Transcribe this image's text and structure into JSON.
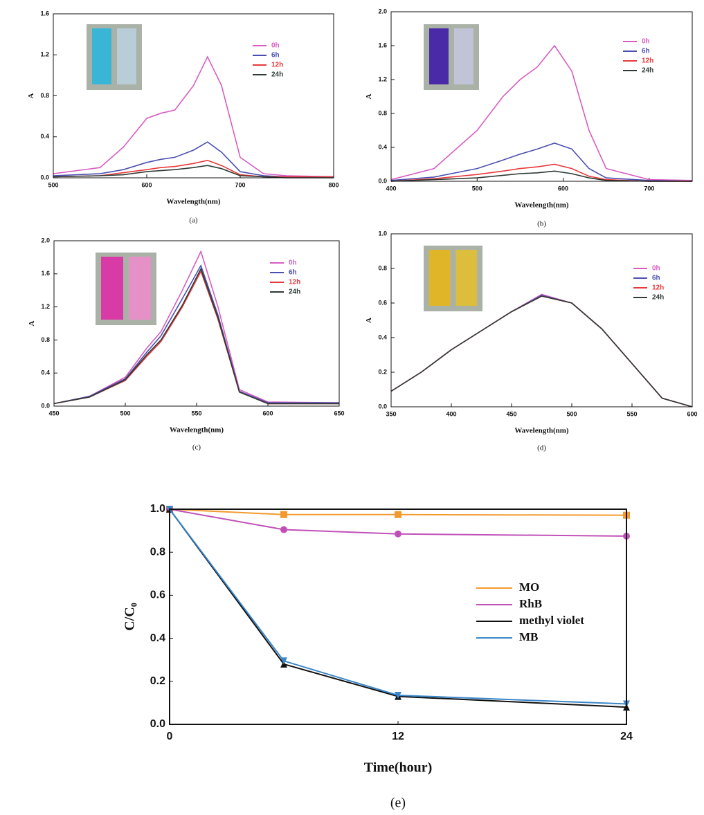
{
  "chart_data": [
    {
      "type": "line",
      "caption": "(a)",
      "xlabel": "Wavelength(nm)",
      "ylabel": "A",
      "xlim": [
        500,
        800
      ],
      "xticks": [
        500,
        600,
        700,
        800
      ],
      "ylim": [
        0,
        1.6
      ],
      "yticks": [
        {
          "value": 0,
          "label": "0.0"
        },
        0.4,
        0.8,
        1.2,
        1.6
      ],
      "x": [
        500,
        550,
        575,
        600,
        615,
        630,
        650,
        665,
        680,
        700,
        725,
        750,
        800
      ],
      "series": [
        {
          "name": "0h",
          "color": "#d85cc0",
          "values": [
            0.04,
            0.1,
            0.3,
            0.58,
            0.63,
            0.66,
            0.9,
            1.18,
            0.9,
            0.2,
            0.04,
            0.02,
            0.01
          ]
        },
        {
          "name": "6h",
          "color": "#4a4fb0",
          "values": [
            0.02,
            0.04,
            0.08,
            0.15,
            0.18,
            0.2,
            0.27,
            0.35,
            0.25,
            0.06,
            0.02,
            0.01,
            0.01
          ]
        },
        {
          "name": "12h",
          "color": "#e8383a",
          "values": [
            0.01,
            0.02,
            0.05,
            0.08,
            0.1,
            0.11,
            0.14,
            0.17,
            0.12,
            0.03,
            0.01,
            0.01,
            0.01
          ]
        },
        {
          "name": "24h",
          "color": "#2e3a34",
          "values": [
            0.01,
            0.02,
            0.03,
            0.06,
            0.07,
            0.08,
            0.1,
            0.12,
            0.09,
            0.02,
            0.01,
            0,
            0
          ]
        }
      ]
    },
    {
      "type": "line",
      "caption": "(b)",
      "xlabel": "Wavelength(nm)",
      "ylabel": "A",
      "xlim": [
        400,
        750
      ],
      "xticks": [
        400,
        500,
        600,
        700
      ],
      "ylim": [
        0,
        2.0
      ],
      "yticks": [
        {
          "value": 0,
          "label": "0.0"
        },
        0.4,
        0.8,
        1.2,
        1.6,
        {
          "value": 2,
          "label": "2.0"
        }
      ],
      "x": [
        400,
        450,
        500,
        530,
        550,
        570,
        590,
        610,
        630,
        650,
        700,
        750
      ],
      "series": [
        {
          "name": "0h",
          "color": "#d85cc0",
          "values": [
            0.02,
            0.15,
            0.6,
            1.0,
            1.2,
            1.35,
            1.6,
            1.3,
            0.6,
            0.15,
            0.02,
            0.01
          ]
        },
        {
          "name": "6h",
          "color": "#4a4fb0",
          "values": [
            0.01,
            0.05,
            0.15,
            0.25,
            0.32,
            0.38,
            0.45,
            0.38,
            0.15,
            0.04,
            0.01,
            0
          ]
        },
        {
          "name": "12h",
          "color": "#e8383a",
          "values": [
            0,
            0.03,
            0.08,
            0.12,
            0.15,
            0.17,
            0.2,
            0.15,
            0.06,
            0.02,
            0,
            0
          ]
        },
        {
          "name": "24h",
          "color": "#2e3a34",
          "values": [
            0,
            0.02,
            0.04,
            0.07,
            0.09,
            0.1,
            0.12,
            0.09,
            0.04,
            0.01,
            0,
            0
          ]
        }
      ]
    },
    {
      "type": "line",
      "caption": "(c)",
      "xlabel": "Wavelength(nm)",
      "ylabel": "A",
      "xlim": [
        450,
        650
      ],
      "xticks": [
        450,
        500,
        550,
        600,
        650
      ],
      "ylim": [
        0,
        2.0
      ],
      "yticks": [
        {
          "value": 0,
          "label": "0.0"
        },
        0.4,
        0.8,
        1.2,
        1.6,
        {
          "value": 2,
          "label": "2.0"
        }
      ],
      "x": [
        450,
        475,
        500,
        515,
        525,
        540,
        553,
        565,
        580,
        600,
        650
      ],
      "series": [
        {
          "name": "0h",
          "color": "#d85cc0",
          "values": [
            0.03,
            0.12,
            0.35,
            0.7,
            0.9,
            1.4,
            1.87,
            1.2,
            0.2,
            0.05,
            0.04
          ]
        },
        {
          "name": "6h",
          "color": "#4a4fb0",
          "values": [
            0.03,
            0.12,
            0.33,
            0.65,
            0.85,
            1.3,
            1.7,
            1.1,
            0.18,
            0.04,
            0.04
          ]
        },
        {
          "name": "12h",
          "color": "#e8383a",
          "values": [
            0.03,
            0.11,
            0.31,
            0.6,
            0.78,
            1.2,
            1.63,
            1.05,
            0.17,
            0.03,
            0.03
          ]
        },
        {
          "name": "24h",
          "color": "#2e3a34",
          "values": [
            0.03,
            0.11,
            0.32,
            0.62,
            0.8,
            1.22,
            1.66,
            1.07,
            0.17,
            0.03,
            0.03
          ]
        }
      ]
    },
    {
      "type": "line",
      "caption": "(d)",
      "xlabel": "Wavelength(nm)",
      "ylabel": "A",
      "xlim": [
        350,
        600
      ],
      "xticks": [
        350,
        400,
        450,
        500,
        550,
        600
      ],
      "ylim": [
        0,
        1.0
      ],
      "yticks": [
        {
          "value": 0,
          "label": "0.0"
        },
        0.2,
        0.4,
        0.6,
        0.8,
        {
          "value": 1,
          "label": "1.0"
        }
      ],
      "x": [
        350,
        375,
        400,
        425,
        450,
        475,
        500,
        525,
        550,
        575,
        600
      ],
      "series": [
        {
          "name": "0h",
          "color": "#d85cc0",
          "values": [
            0.09,
            0.2,
            0.33,
            0.44,
            0.55,
            0.65,
            0.6,
            0.45,
            0.25,
            0.05,
            0
          ]
        },
        {
          "name": "6h",
          "color": "#4a4fb0",
          "values": [
            0.09,
            0.2,
            0.33,
            0.44,
            0.55,
            0.645,
            0.6,
            0.45,
            0.25,
            0.05,
            0
          ]
        },
        {
          "name": "12h",
          "color": "#e8383a",
          "values": [
            0.09,
            0.2,
            0.33,
            0.44,
            0.55,
            0.64,
            0.6,
            0.45,
            0.25,
            0.05,
            0
          ]
        },
        {
          "name": "24h",
          "color": "#2e3a34",
          "values": [
            0.09,
            0.2,
            0.33,
            0.44,
            0.55,
            0.64,
            0.6,
            0.45,
            0.25,
            0.05,
            0
          ]
        }
      ]
    },
    {
      "type": "line",
      "caption": "(e)",
      "xlabel": "Time(hour)",
      "ylabel": "C/C₀",
      "xlim": [
        0,
        24
      ],
      "xticks": [
        0,
        12,
        24
      ],
      "ylim": [
        0,
        1.0
      ],
      "yticks": [
        {
          "value": 0,
          "label": "0.0"
        },
        0.2,
        0.4,
        0.6,
        0.8,
        {
          "value": 1,
          "label": "1.0"
        }
      ],
      "x": [
        0,
        6,
        12,
        24
      ],
      "series": [
        {
          "name": "MO",
          "color": "#f39a2c",
          "marker": "square",
          "values": [
            1,
            0.975,
            0.975,
            0.972
          ]
        },
        {
          "name": "RhB",
          "color": "#c050b8",
          "marker": "circle",
          "values": [
            1,
            0.905,
            0.885,
            0.875
          ]
        },
        {
          "name": "methyl violet",
          "color": "#111111",
          "marker": "triangle",
          "values": [
            1,
            0.28,
            0.13,
            0.08
          ]
        },
        {
          "name": "MB",
          "color": "#3a86c8",
          "marker": "triangle-down",
          "values": [
            1,
            0.295,
            0.135,
            0.095
          ]
        }
      ]
    }
  ]
}
